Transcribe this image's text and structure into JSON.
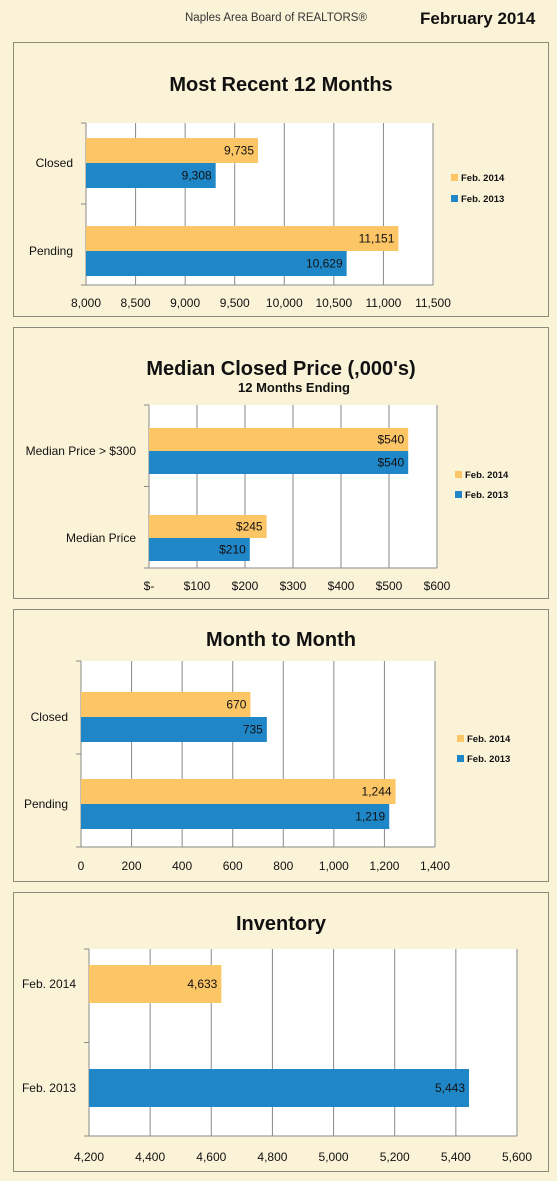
{
  "header": {
    "org": "Naples Area Board of REALTORS®",
    "month": "February 2014"
  },
  "colors": {
    "feb2014": "#fcc566",
    "feb2013": "#1f87c8"
  },
  "chart_data": [
    {
      "type": "bar",
      "title": "Most Recent 12 Months",
      "subtitle": "",
      "categories": [
        "Closed",
        "Pending"
      ],
      "series": [
        {
          "name": "Feb. 2014",
          "values": [
            9735,
            11151
          ],
          "labels": [
            "9,735",
            "11,151"
          ]
        },
        {
          "name": "Feb. 2013",
          "values": [
            9308,
            10629
          ],
          "labels": [
            "9,308",
            "10,629"
          ]
        }
      ],
      "xlim": [
        8000,
        11500
      ],
      "ticks": [
        8000,
        8500,
        9000,
        9500,
        10000,
        10500,
        11000,
        11500
      ],
      "tick_labels": [
        "8,000",
        "8,500",
        "9,000",
        "9,500",
        "10,000",
        "10,500",
        "11,000",
        "11,500"
      ],
      "grid": true,
      "legend": "right"
    },
    {
      "type": "bar",
      "title": "Median Closed Price (,000's)",
      "subtitle": "12 Months Ending",
      "categories": [
        "Median Price > $300",
        "Median Price"
      ],
      "series": [
        {
          "name": "Feb. 2014",
          "values": [
            540,
            245
          ],
          "labels": [
            "$540",
            "$245"
          ]
        },
        {
          "name": "Feb. 2013",
          "values": [
            540,
            210
          ],
          "labels": [
            "$540",
            "$210"
          ]
        }
      ],
      "xlim": [
        0,
        600
      ],
      "ticks": [
        0,
        100,
        200,
        300,
        400,
        500,
        600
      ],
      "tick_labels": [
        "$-",
        "$100",
        "$200",
        "$300",
        "$400",
        "$500",
        "$600"
      ],
      "grid": true,
      "legend": "right"
    },
    {
      "type": "bar",
      "title": "Month to Month",
      "subtitle": "",
      "categories": [
        "Closed",
        "Pending"
      ],
      "series": [
        {
          "name": "Feb. 2014",
          "values": [
            670,
            1244
          ],
          "labels": [
            "670",
            "1,244"
          ]
        },
        {
          "name": "Feb. 2013",
          "values": [
            735,
            1219
          ],
          "labels": [
            "735",
            "1,219"
          ]
        }
      ],
      "xlim": [
        0,
        1400
      ],
      "ticks": [
        0,
        200,
        400,
        600,
        800,
        1000,
        1200,
        1400
      ],
      "tick_labels": [
        "0",
        "200",
        "400",
        "600",
        "800",
        "1,000",
        "1,200",
        "1,400"
      ],
      "grid": true,
      "legend": "right"
    },
    {
      "type": "bar",
      "title": "Inventory",
      "subtitle": "",
      "categories": [
        "Feb. 2014",
        "Feb. 2013"
      ],
      "bars": [
        {
          "category": "Feb. 2014",
          "value": 4633,
          "label": "4,633",
          "color": "#fcc566"
        },
        {
          "category": "Feb. 2013",
          "value": 5443,
          "label": "5,443",
          "color": "#1f87c8"
        }
      ],
      "xlim": [
        4200,
        5600
      ],
      "ticks": [
        4200,
        4400,
        4600,
        4800,
        5000,
        5200,
        5400,
        5600
      ],
      "tick_labels": [
        "4,200",
        "4,400",
        "4,600",
        "4,800",
        "5,000",
        "5,200",
        "5,400",
        "5,600"
      ],
      "grid": true,
      "legend": "none"
    }
  ]
}
